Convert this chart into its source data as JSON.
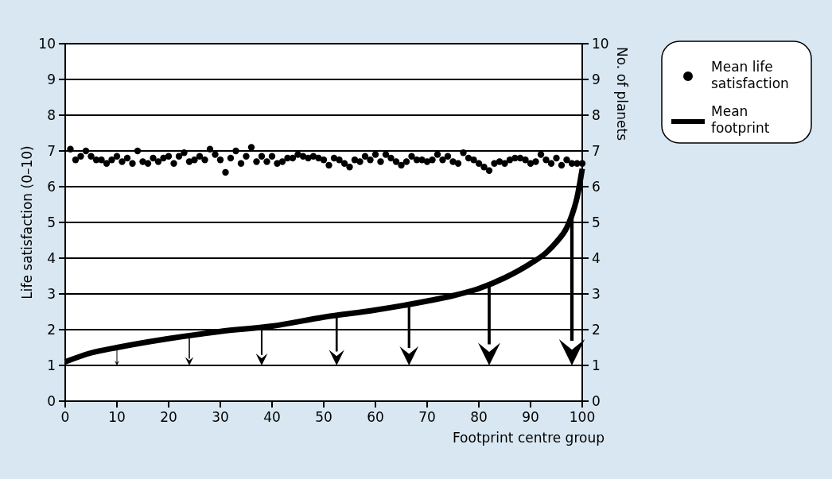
{
  "chart_data": {
    "type": "scatter",
    "xlabel": "Footprint centre group",
    "ylabel": "Life satisfaction (0–10)",
    "y2label": "No. of planets",
    "xlim": [
      0,
      100
    ],
    "xticks": [
      0,
      10,
      20,
      30,
      40,
      50,
      60,
      70,
      80,
      90,
      100
    ],
    "ylim": [
      0,
      10
    ],
    "yticks": [
      0,
      1,
      2,
      3,
      4,
      5,
      6,
      7,
      8,
      9,
      10
    ],
    "y2lim": [
      0,
      10
    ],
    "y2ticks": [
      0,
      1,
      2,
      3,
      4,
      5,
      6,
      7,
      8,
      9,
      10
    ],
    "grid": "y",
    "legend": "top right",
    "marker": "circle",
    "series": [
      {
        "name": "Mean life satisfaction",
        "type": "scatter",
        "color": "#000000",
        "x": [
          1,
          2,
          3,
          4,
          5,
          6,
          7,
          8,
          9,
          10,
          11,
          12,
          13,
          14,
          15,
          16,
          17,
          18,
          19,
          20,
          21,
          22,
          23,
          24,
          25,
          26,
          27,
          28,
          29,
          30,
          31,
          32,
          33,
          34,
          35,
          36,
          37,
          38,
          39,
          40,
          41,
          42,
          43,
          44,
          45,
          46,
          47,
          48,
          49,
          50,
          51,
          52,
          53,
          54,
          55,
          56,
          57,
          58,
          59,
          60,
          61,
          62,
          63,
          64,
          65,
          66,
          67,
          68,
          69,
          70,
          71,
          72,
          73,
          74,
          75,
          76,
          77,
          78,
          79,
          80,
          81,
          82,
          83,
          84,
          85,
          86,
          87,
          88,
          89,
          90,
          91,
          92,
          93,
          94,
          95,
          96,
          97,
          98,
          99,
          100
        ],
        "values": [
          7.05,
          6.75,
          6.85,
          7.0,
          6.85,
          6.75,
          6.75,
          6.65,
          6.75,
          6.85,
          6.7,
          6.8,
          6.65,
          7.0,
          6.7,
          6.65,
          6.8,
          6.7,
          6.8,
          6.85,
          6.65,
          6.85,
          6.95,
          6.7,
          6.75,
          6.85,
          6.75,
          7.05,
          6.9,
          6.75,
          6.4,
          6.8,
          7.0,
          6.65,
          6.85,
          7.1,
          6.7,
          6.85,
          6.7,
          6.85,
          6.65,
          6.7,
          6.8,
          6.8,
          6.9,
          6.85,
          6.8,
          6.85,
          6.8,
          6.75,
          6.6,
          6.8,
          6.75,
          6.65,
          6.55,
          6.75,
          6.7,
          6.85,
          6.75,
          6.9,
          6.7,
          6.9,
          6.8,
          6.7,
          6.6,
          6.7,
          6.85,
          6.75,
          6.75,
          6.7,
          6.75,
          6.9,
          6.75,
          6.85,
          6.7,
          6.65,
          6.95,
          6.8,
          6.75,
          6.65,
          6.55,
          6.45,
          6.65,
          6.7,
          6.65,
          6.75,
          6.8,
          6.8,
          6.75,
          6.65,
          6.7,
          6.9,
          6.75,
          6.65,
          6.8,
          6.6,
          6.75,
          6.65,
          6.65,
          6.65
        ]
      },
      {
        "name": "Mean footprint",
        "type": "line",
        "color": "#000000",
        "marker": "none",
        "x": [
          0,
          5,
          10,
          20,
          30,
          40,
          50,
          60,
          70,
          75,
          80,
          85,
          90,
          93,
          95,
          97,
          98,
          99,
          100
        ],
        "values": [
          1.1,
          1.35,
          1.5,
          1.75,
          1.95,
          2.1,
          2.35,
          2.55,
          2.8,
          2.95,
          3.15,
          3.45,
          3.85,
          4.15,
          4.45,
          4.85,
          5.2,
          5.7,
          6.5
        ]
      }
    ]
  }
}
